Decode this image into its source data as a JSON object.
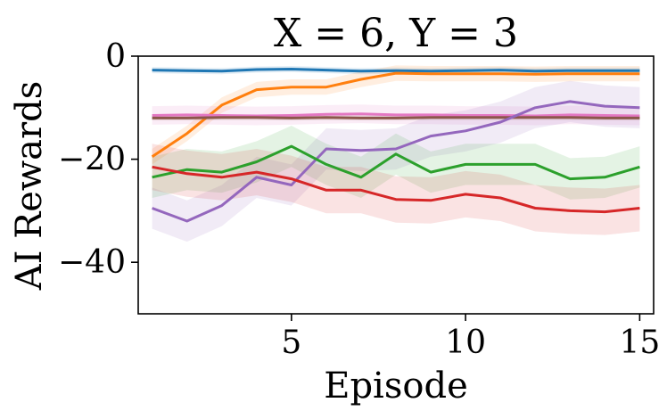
{
  "chart_data": {
    "type": "line",
    "title": "X = 6, Y = 3",
    "xlabel": "Episode",
    "ylabel": "AI Rewards",
    "xlim": [
      0.6,
      15.4
    ],
    "ylim": [
      -50,
      0
    ],
    "xticks": [
      5,
      10,
      15
    ],
    "yticks": [
      0,
      -20,
      -40
    ],
    "xtick_labels": [
      "5",
      "10",
      "15"
    ],
    "ytick_labels": [
      "0",
      "−20",
      "−40"
    ],
    "grid": false,
    "legend": "none",
    "x": [
      1,
      2,
      3,
      4,
      5,
      6,
      7,
      8,
      9,
      10,
      11,
      12,
      13,
      14,
      15
    ],
    "series": [
      {
        "color": "#1f77b4",
        "values": [
          -2.7,
          -2.8,
          -2.9,
          -2.6,
          -2.5,
          -2.7,
          -2.9,
          -2.8,
          -2.9,
          -2.8,
          -2.7,
          -2.9,
          -2.8,
          -2.8,
          -2.8
        ],
        "band": 0.6
      },
      {
        "color": "#ff7f0e",
        "values": [
          -19.5,
          -15,
          -9.5,
          -6.5,
          -6,
          -6,
          -4.5,
          -3.3,
          -3.4,
          -3.4,
          -3.4,
          -3.5,
          -3.4,
          -3.4,
          -3.4
        ],
        "band": 1.5
      },
      {
        "color": "#e377c2",
        "values": [
          -11.5,
          -11.4,
          -11.5,
          -11.6,
          -11.5,
          -11.3,
          -11.2,
          -11.4,
          -11.4,
          -11.5,
          -11.5,
          -11.6,
          -11.4,
          -11.5,
          -11.6
        ],
        "band": 1.8
      },
      {
        "color": "#8c564b",
        "values": [
          -12,
          -12,
          -11.9,
          -11.9,
          -12,
          -11.9,
          -12,
          -12,
          -11.9,
          -11.9,
          -11.9,
          -11.9,
          -11.9,
          -12,
          -12
        ],
        "band": 0.5
      },
      {
        "color": "#9467bd",
        "values": [
          -29.5,
          -32,
          -29,
          -23.5,
          -25,
          -18,
          -18.3,
          -18,
          -15.5,
          -14.5,
          -12.8,
          -10,
          -8.8,
          -9.7,
          -10
        ],
        "band": 4.0
      },
      {
        "color": "#2ca02c",
        "values": [
          -23.5,
          -22,
          -22.5,
          -20.5,
          -17.5,
          -21,
          -23.5,
          -19,
          -22.5,
          -21,
          -21,
          -21,
          -23.8,
          -23.5,
          -21.5
        ],
        "band": 4.0
      },
      {
        "color": "#d62728",
        "values": [
          -21.5,
          -22.8,
          -23.5,
          -22.5,
          -23.8,
          -26,
          -26,
          -27.8,
          -28,
          -26.8,
          -27.5,
          -29.5,
          -30,
          -30.2,
          -29.5
        ],
        "band": 4.5
      }
    ]
  }
}
